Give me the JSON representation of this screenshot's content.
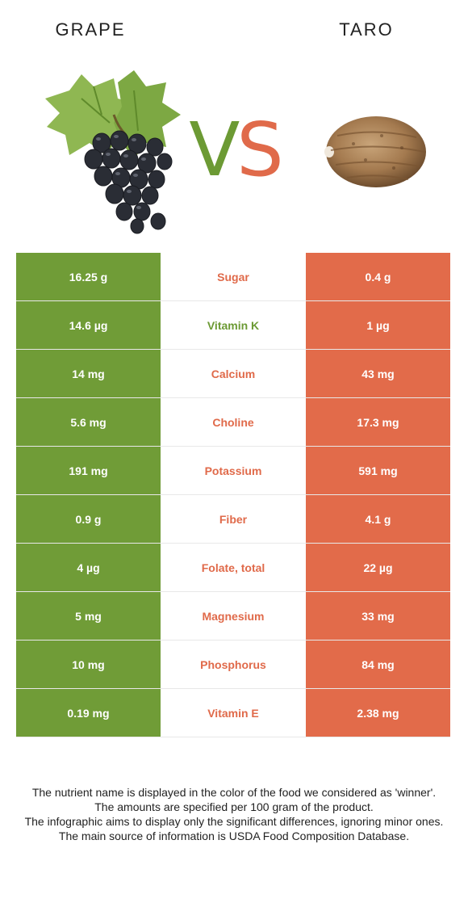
{
  "left_food": {
    "name": "GRAPE",
    "color": "#709c37"
  },
  "right_food": {
    "name": "TARO",
    "color": "#e26b4a"
  },
  "vs": {
    "v": "V",
    "s": "S"
  },
  "rows": [
    {
      "nutrient": "Sugar",
      "left": "16.25 g",
      "right": "0.4 g",
      "winner": "right"
    },
    {
      "nutrient": "Vitamin K",
      "left": "14.6 µg",
      "right": "1 µg",
      "winner": "left"
    },
    {
      "nutrient": "Calcium",
      "left": "14 mg",
      "right": "43 mg",
      "winner": "right"
    },
    {
      "nutrient": "Choline",
      "left": "5.6 mg",
      "right": "17.3 mg",
      "winner": "right"
    },
    {
      "nutrient": "Potassium",
      "left": "191 mg",
      "right": "591 mg",
      "winner": "right"
    },
    {
      "nutrient": "Fiber",
      "left": "0.9 g",
      "right": "4.1 g",
      "winner": "right"
    },
    {
      "nutrient": "Folate, total",
      "left": "4 µg",
      "right": "22 µg",
      "winner": "right"
    },
    {
      "nutrient": "Magnesium",
      "left": "5 mg",
      "right": "33 mg",
      "winner": "right"
    },
    {
      "nutrient": "Phosphorus",
      "left": "10 mg",
      "right": "84 mg",
      "winner": "right"
    },
    {
      "nutrient": "Vitamin E",
      "left": "0.19 mg",
      "right": "2.38 mg",
      "winner": "right"
    }
  ],
  "footer": {
    "line1": "The nutrient name is displayed in the color of the food we considered as 'winner'.",
    "line2": "The amounts are specified per 100 gram of the product.",
    "line3": "The infographic aims to display only the significant differences, ignoring minor ones.",
    "line4": "The main source of information is USDA Food Composition Database."
  }
}
